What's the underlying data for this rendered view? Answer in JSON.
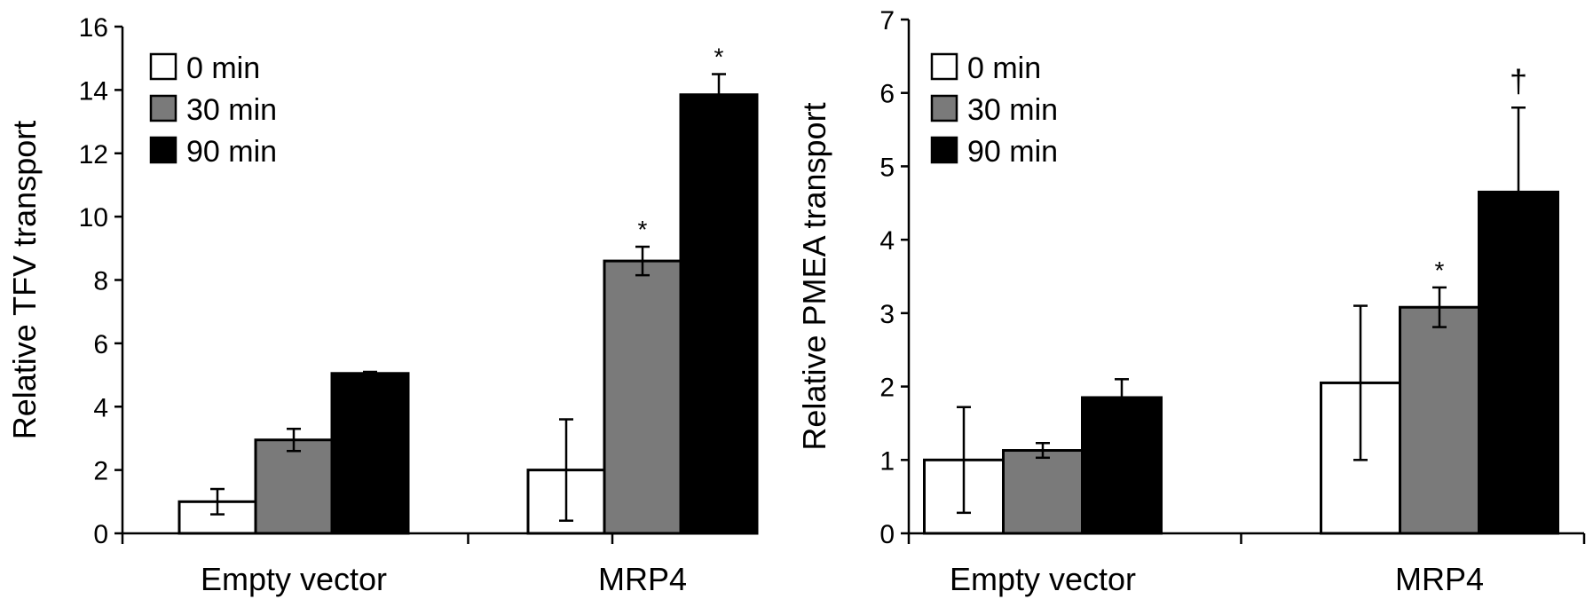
{
  "chart_data": [
    {
      "type": "bar",
      "ylabel": "Relative TFV transport",
      "ylim": [
        0,
        16
      ],
      "yticks": [
        0,
        2,
        4,
        6,
        8,
        10,
        12,
        14,
        16
      ],
      "categories": [
        "Empty vector",
        "MRP4"
      ],
      "legend_position": "top-left",
      "grid": false,
      "series": [
        {
          "name": "0 min",
          "color": "#ffffff",
          "values": [
            1.0,
            2.0
          ],
          "errors": [
            0.4,
            1.6
          ],
          "annotations": [
            "",
            ""
          ]
        },
        {
          "name": "30 min",
          "color": "#7a7a7a",
          "values": [
            2.95,
            8.6
          ],
          "errors": [
            0.35,
            0.45
          ],
          "annotations": [
            "",
            "*"
          ]
        },
        {
          "name": "90 min",
          "color": "#000000",
          "values": [
            5.05,
            13.85
          ],
          "errors": [
            0.05,
            0.65
          ],
          "annotations": [
            "",
            "*"
          ]
        }
      ]
    },
    {
      "type": "bar",
      "ylabel": "Relative PMEA transport",
      "ylim": [
        0,
        7
      ],
      "yticks": [
        0,
        1,
        2,
        3,
        4,
        5,
        6,
        7
      ],
      "categories": [
        "Empty vector",
        "MRP4"
      ],
      "legend_position": "top-left",
      "grid": false,
      "series": [
        {
          "name": "0 min",
          "color": "#ffffff",
          "values": [
            1.0,
            2.05
          ],
          "errors": [
            0.72,
            1.05
          ],
          "annotations": [
            "",
            ""
          ]
        },
        {
          "name": "30 min",
          "color": "#7a7a7a",
          "values": [
            1.13,
            3.08
          ],
          "errors": [
            0.1,
            0.27
          ],
          "annotations": [
            "",
            "*"
          ]
        },
        {
          "name": "90 min",
          "color": "#000000",
          "values": [
            1.85,
            4.65
          ],
          "errors": [
            0.25,
            1.15
          ],
          "annotations": [
            "",
            "†"
          ]
        }
      ]
    }
  ]
}
